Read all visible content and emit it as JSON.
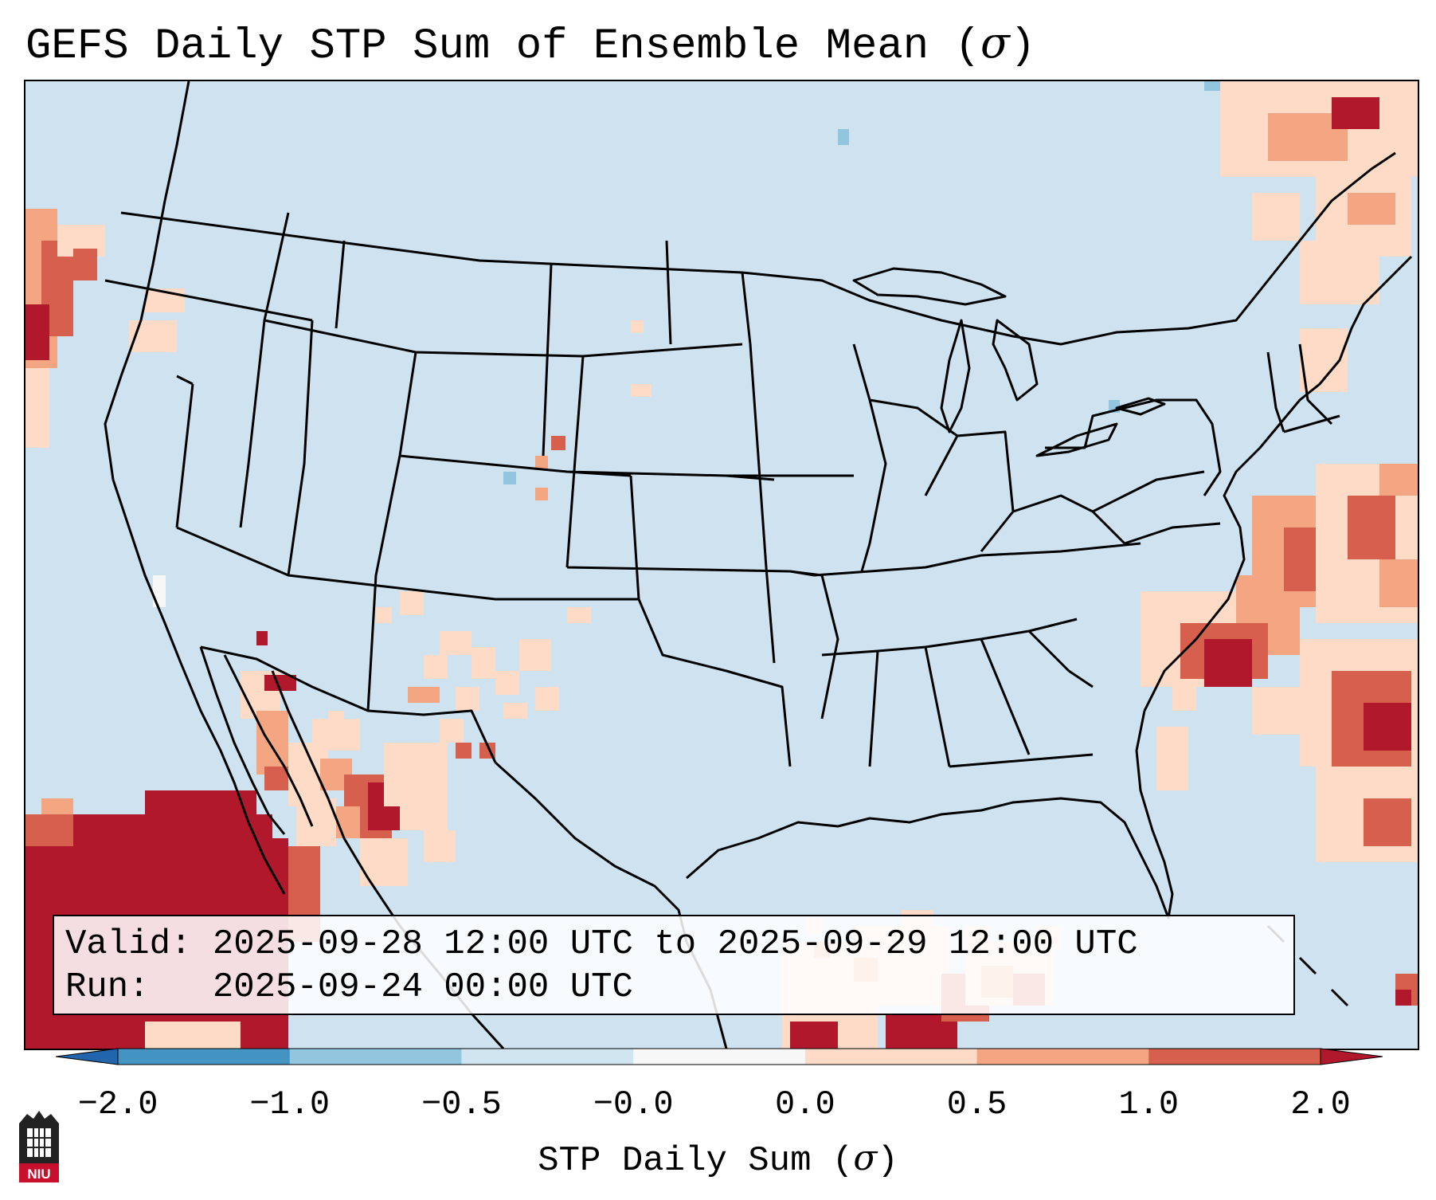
{
  "title": {
    "text": "GEFS Daily STP Sum of Ensemble Mean (",
    "symbol": "σ",
    "close": ")"
  },
  "map": {
    "region": "Continental United States, northern Mexico, Gulf of Mexico, western Atlantic",
    "colors": {
      "ocean_land_fill": "#cfe2ef",
      "borders": "#000000"
    }
  },
  "info": {
    "valid_label": "Valid:",
    "valid_value": "2025-09-28 12:00 UTC to 2025-09-29 12:00 UTC",
    "run_label": "Run:",
    "run_value": "2025-09-24 00:00 UTC"
  },
  "chart_data": {
    "type": "heatmap",
    "variable": "STP Daily Sum",
    "units": "σ",
    "colorbar": {
      "label": "STP Daily Sum (",
      "label_symbol": "σ",
      "label_close": ")",
      "ticks": [
        "−2.0",
        "−1.0",
        "−0.5",
        "−0.0",
        "0.0",
        "0.5",
        "1.0",
        "2.0"
      ],
      "bins": [
        {
          "range": [
            -2.0,
            -1.0
          ],
          "color": "#4393c3"
        },
        {
          "range": [
            -1.0,
            -0.5
          ],
          "color": "#92c5de"
        },
        {
          "range": [
            -0.5,
            0.0
          ],
          "color": "#d1e5f0"
        },
        {
          "range": [
            0.0,
            0.0
          ],
          "color": "#f7f7f7"
        },
        {
          "range": [
            0.0,
            0.5
          ],
          "color": "#fddbc7"
        },
        {
          "range": [
            0.5,
            1.0
          ],
          "color": "#f4a582"
        },
        {
          "range": [
            1.0,
            2.0
          ],
          "color": "#d6604d"
        }
      ],
      "extend_low_color": "#2166ac",
      "extend_high_color": "#b2182b"
    },
    "highlights": [
      {
        "area": "Eastern Pacific off Baja California",
        "level": "> 2.0"
      },
      {
        "area": "Gulf of California / Sonora",
        "level": "1.0 to 2.0"
      },
      {
        "area": "Southern New Mexico / Arizona",
        "level": "0.0 to 1.0"
      },
      {
        "area": "Offshore North Carolina / Western Atlantic",
        "level": "0.5 to 2.0"
      },
      {
        "area": "Gulf of St. Lawrence / Maritimes",
        "level": "0.5 to 2.0"
      },
      {
        "area": "Southern Gulf of Mexico",
        "level": "0.0 to 2.0"
      }
    ]
  },
  "logo": {
    "text": "NIU"
  }
}
